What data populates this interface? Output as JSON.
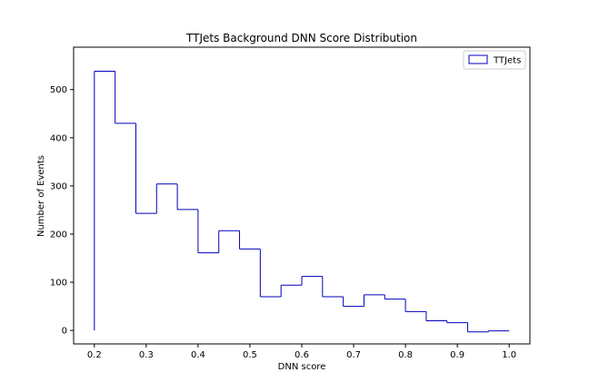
{
  "chart_data": {
    "type": "step-histogram",
    "title": "TTJets Background DNN Score Distribution",
    "xlabel": "DNN score",
    "ylabel": "Number of Events",
    "xlim": [
      0.16,
      1.04
    ],
    "ylim": [
      -28,
      588
    ],
    "xticks": [
      0.2,
      0.3,
      0.4,
      0.5,
      0.6,
      0.7,
      0.8,
      0.9,
      1.0
    ],
    "xtick_labels": [
      "0.2",
      "0.3",
      "0.4",
      "0.5",
      "0.6",
      "0.7",
      "0.8",
      "0.9",
      "1.0"
    ],
    "yticks": [
      0,
      100,
      200,
      300,
      400,
      500
    ],
    "ytick_labels": [
      "0",
      "100",
      "200",
      "300",
      "400",
      "500"
    ],
    "bin_edges": [
      0.2,
      0.24,
      0.28,
      0.32,
      0.36,
      0.4,
      0.44,
      0.48,
      0.52,
      0.56,
      0.6,
      0.64,
      0.68,
      0.72,
      0.76,
      0.8,
      0.84,
      0.88,
      0.92,
      0.96,
      1.0
    ],
    "series": [
      {
        "name": "TTJets",
        "color": "#0000bb",
        "values": [
          538,
          430,
          243,
          304,
          251,
          161,
          207,
          169,
          70,
          94,
          112,
          70,
          50,
          74,
          65,
          39,
          20,
          16,
          -3,
          -1
        ]
      }
    ],
    "legend": {
      "position": "top-right",
      "entries": [
        "TTJets"
      ]
    },
    "grid": false
  }
}
